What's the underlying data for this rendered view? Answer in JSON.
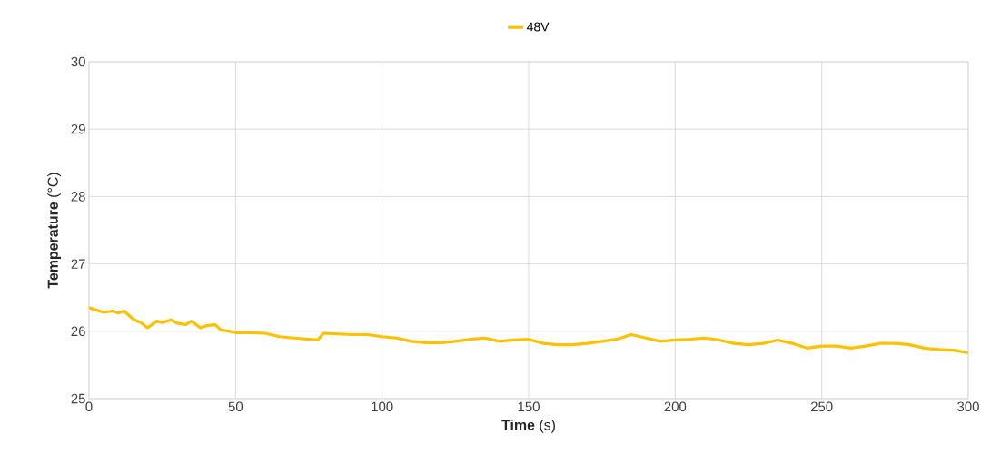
{
  "chart_data": {
    "type": "line",
    "xlabel": "**Time** (s)",
    "ylabel": "**Temperature** (°C)",
    "x": [
      0,
      2,
      5,
      8,
      10,
      12,
      15,
      18,
      20,
      23,
      25,
      28,
      30,
      33,
      35,
      38,
      40,
      43,
      45,
      48,
      50,
      55,
      60,
      65,
      70,
      75,
      78,
      80,
      85,
      90,
      95,
      100,
      105,
      110,
      115,
      120,
      125,
      130,
      135,
      140,
      145,
      150,
      155,
      160,
      165,
      170,
      175,
      180,
      185,
      190,
      195,
      200,
      205,
      210,
      215,
      220,
      225,
      230,
      235,
      240,
      245,
      250,
      255,
      260,
      265,
      270,
      275,
      280,
      285,
      290,
      295,
      300
    ],
    "series": [
      {
        "name": "48V",
        "color": "#ffc000",
        "values": [
          26.35,
          26.32,
          26.28,
          26.3,
          26.27,
          26.3,
          26.18,
          26.12,
          26.05,
          26.15,
          26.13,
          26.17,
          26.12,
          26.1,
          26.15,
          26.05,
          26.08,
          26.1,
          26.02,
          26.0,
          25.98,
          25.98,
          25.97,
          25.92,
          25.9,
          25.88,
          25.87,
          25.97,
          25.96,
          25.95,
          25.95,
          25.92,
          25.9,
          25.85,
          25.83,
          25.83,
          25.85,
          25.88,
          25.9,
          25.85,
          25.87,
          25.88,
          25.82,
          25.8,
          25.8,
          25.82,
          25.85,
          25.88,
          25.95,
          25.9,
          25.85,
          25.87,
          25.88,
          25.9,
          25.87,
          25.82,
          25.8,
          25.82,
          25.87,
          25.82,
          25.75,
          25.78,
          25.78,
          25.75,
          25.78,
          25.82,
          25.82,
          25.8,
          25.75,
          25.73,
          25.72,
          25.68
        ]
      }
    ],
    "xlim": [
      0,
      300
    ],
    "ylim": [
      25,
      30
    ],
    "xticks": [
      0,
      50,
      100,
      150,
      200,
      250,
      300
    ],
    "yticks": [
      25,
      26,
      27,
      28,
      29,
      30
    ],
    "grid": true,
    "legend": "top",
    "marker": "none",
    "line_style": "solid"
  }
}
